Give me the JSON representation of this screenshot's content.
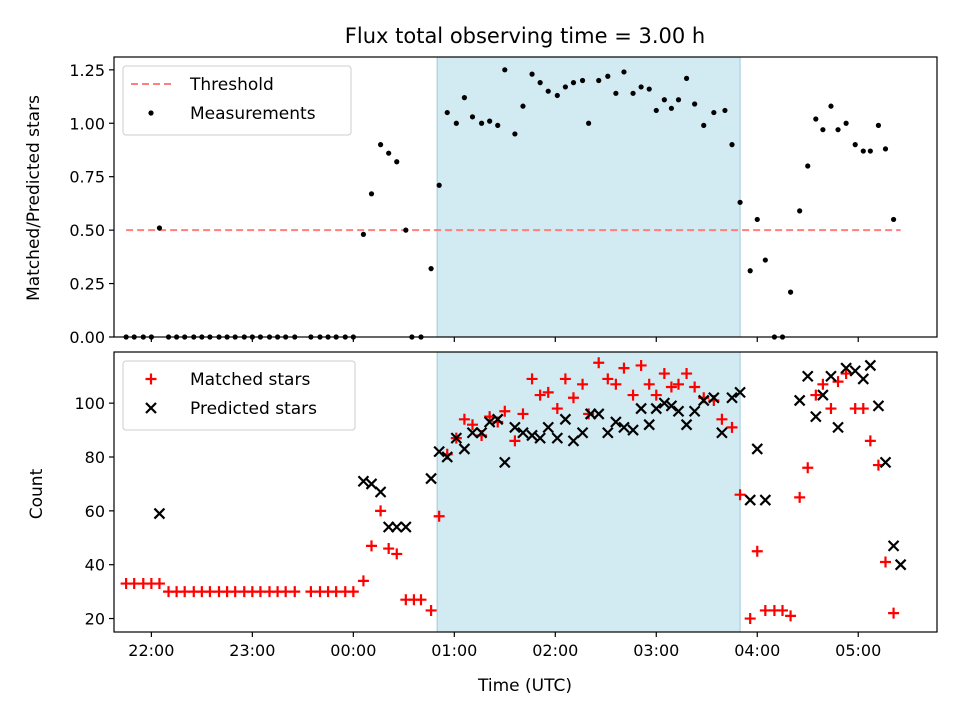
{
  "figure": {
    "title": "Flux total observing time = 3.00 h",
    "xlabel": "Time (UTC)",
    "xticks": [
      {
        "t": 22.0,
        "label": "22:00"
      },
      {
        "t": 23.0,
        "label": "23:00"
      },
      {
        "t": 24.0,
        "label": "00:00"
      },
      {
        "t": 25.0,
        "label": "01:00"
      },
      {
        "t": 26.0,
        "label": "02:00"
      },
      {
        "t": 27.0,
        "label": "03:00"
      },
      {
        "t": 28.0,
        "label": "04:00"
      },
      {
        "t": 29.0,
        "label": "05:00"
      }
    ],
    "xlim": [
      21.63,
      29.78
    ],
    "highlight_span": [
      24.83,
      27.83
    ],
    "colors": {
      "highlight": "#add8e6",
      "threshold": "#ff7f7f",
      "measurements": "#000000",
      "matched": "#ff0000",
      "predicted": "#000000"
    }
  },
  "chart_data": [
    {
      "type": "scatter",
      "ylabel": "Matched/Predicted stars",
      "ylim": [
        0,
        1.31
      ],
      "yticks": [
        "0.00",
        "0.25",
        "0.50",
        "0.75",
        "1.00",
        "1.25"
      ],
      "legend_position": "top-left",
      "threshold": {
        "name": "Threshold",
        "value": 0.5,
        "x_range": [
          21.75,
          29.42
        ]
      },
      "series": [
        {
          "name": "Measurements",
          "marker": "dot",
          "points": [
            [
              21.75,
              0
            ],
            [
              21.83,
              0
            ],
            [
              21.92,
              0
            ],
            [
              22.0,
              0
            ],
            [
              22.08,
              0.51
            ],
            [
              22.17,
              0
            ],
            [
              22.25,
              0
            ],
            [
              22.33,
              0
            ],
            [
              22.42,
              0
            ],
            [
              22.5,
              0
            ],
            [
              22.58,
              0
            ],
            [
              22.67,
              0
            ],
            [
              22.75,
              0
            ],
            [
              22.83,
              0
            ],
            [
              22.92,
              0
            ],
            [
              23.0,
              0
            ],
            [
              23.08,
              0
            ],
            [
              23.17,
              0
            ],
            [
              23.25,
              0
            ],
            [
              23.33,
              0
            ],
            [
              23.42,
              0
            ],
            [
              23.58,
              0
            ],
            [
              23.67,
              0
            ],
            [
              23.75,
              0
            ],
            [
              23.83,
              0
            ],
            [
              23.92,
              0
            ],
            [
              24.0,
              0
            ],
            [
              24.1,
              0.48
            ],
            [
              24.18,
              0.67
            ],
            [
              24.27,
              0.9
            ],
            [
              24.35,
              0.86
            ],
            [
              24.43,
              0.82
            ],
            [
              24.52,
              0.5
            ],
            [
              24.58,
              0
            ],
            [
              24.67,
              0
            ],
            [
              24.77,
              0.32
            ],
            [
              24.85,
              0.71
            ],
            [
              24.93,
              1.05
            ],
            [
              25.02,
              1.0
            ],
            [
              25.1,
              1.12
            ],
            [
              25.18,
              1.03
            ],
            [
              25.27,
              1.0
            ],
            [
              25.35,
              1.01
            ],
            [
              25.43,
              0.99
            ],
            [
              25.5,
              1.25
            ],
            [
              25.6,
              0.95
            ],
            [
              25.68,
              1.08
            ],
            [
              25.77,
              1.23
            ],
            [
              25.85,
              1.19
            ],
            [
              25.93,
              1.15
            ],
            [
              26.02,
              1.13
            ],
            [
              26.1,
              1.17
            ],
            [
              26.18,
              1.19
            ],
            [
              26.27,
              1.2
            ],
            [
              26.33,
              1.0
            ],
            [
              26.43,
              1.2
            ],
            [
              26.52,
              1.22
            ],
            [
              26.6,
              1.14
            ],
            [
              26.68,
              1.24
            ],
            [
              26.77,
              1.14
            ],
            [
              26.85,
              1.17
            ],
            [
              26.93,
              1.16
            ],
            [
              27.0,
              1.06
            ],
            [
              27.08,
              1.11
            ],
            [
              27.15,
              1.07
            ],
            [
              27.22,
              1.11
            ],
            [
              27.3,
              1.21
            ],
            [
              27.38,
              1.09
            ],
            [
              27.47,
              0.99
            ],
            [
              27.57,
              1.05
            ],
            [
              27.68,
              1.06
            ],
            [
              27.75,
              0.9
            ],
            [
              27.83,
              0.63
            ],
            [
              27.93,
              0.31
            ],
            [
              28.0,
              0.55
            ],
            [
              28.08,
              0.36
            ],
            [
              28.17,
              0
            ],
            [
              28.25,
              0
            ],
            [
              28.33,
              0.21
            ],
            [
              28.42,
              0.59
            ],
            [
              28.5,
              0.8
            ],
            [
              28.58,
              1.02
            ],
            [
              28.65,
              0.97
            ],
            [
              28.73,
              1.08
            ],
            [
              28.8,
              0.97
            ],
            [
              28.88,
              1.0
            ],
            [
              28.97,
              0.9
            ],
            [
              29.05,
              0.87
            ],
            [
              29.12,
              0.87
            ],
            [
              29.2,
              0.99
            ],
            [
              29.27,
              0.88
            ],
            [
              29.35,
              0.55
            ]
          ]
        }
      ]
    },
    {
      "type": "scatter",
      "ylabel": "Count",
      "ylim": [
        15,
        119
      ],
      "yticks": [
        "20",
        "40",
        "60",
        "80",
        "100"
      ],
      "legend_position": "top-left",
      "series": [
        {
          "name": "Matched stars",
          "marker": "plus",
          "points": [
            [
              21.75,
              33
            ],
            [
              21.83,
              33
            ],
            [
              21.92,
              33
            ],
            [
              22.0,
              33
            ],
            [
              22.08,
              33
            ],
            [
              22.17,
              30
            ],
            [
              22.25,
              30
            ],
            [
              22.33,
              30
            ],
            [
              22.42,
              30
            ],
            [
              22.5,
              30
            ],
            [
              22.58,
              30
            ],
            [
              22.67,
              30
            ],
            [
              22.75,
              30
            ],
            [
              22.83,
              30
            ],
            [
              22.92,
              30
            ],
            [
              23.0,
              30
            ],
            [
              23.08,
              30
            ],
            [
              23.17,
              30
            ],
            [
              23.25,
              30
            ],
            [
              23.33,
              30
            ],
            [
              23.42,
              30
            ],
            [
              23.58,
              30
            ],
            [
              23.67,
              30
            ],
            [
              23.75,
              30
            ],
            [
              23.83,
              30
            ],
            [
              23.92,
              30
            ],
            [
              24.0,
              30
            ],
            [
              24.1,
              34
            ],
            [
              24.18,
              47
            ],
            [
              24.27,
              60
            ],
            [
              24.35,
              46
            ],
            [
              24.43,
              44
            ],
            [
              24.52,
              27
            ],
            [
              24.6,
              27
            ],
            [
              24.67,
              27
            ],
            [
              24.77,
              23
            ],
            [
              24.85,
              58
            ],
            [
              24.93,
              81
            ],
            [
              25.02,
              87
            ],
            [
              25.1,
              94
            ],
            [
              25.18,
              92
            ],
            [
              25.27,
              88
            ],
            [
              25.35,
              95
            ],
            [
              25.43,
              93
            ],
            [
              25.5,
              97
            ],
            [
              25.6,
              86
            ],
            [
              25.68,
              96
            ],
            [
              25.77,
              109
            ],
            [
              25.85,
              103
            ],
            [
              25.93,
              104
            ],
            [
              26.02,
              98
            ],
            [
              26.1,
              109
            ],
            [
              26.18,
              102
            ],
            [
              26.27,
              107
            ],
            [
              26.33,
              96
            ],
            [
              26.43,
              115
            ],
            [
              26.52,
              109
            ],
            [
              26.6,
              107
            ],
            [
              26.68,
              113
            ],
            [
              26.77,
              103
            ],
            [
              26.85,
              114
            ],
            [
              26.93,
              107
            ],
            [
              27.0,
              103
            ],
            [
              27.08,
              111
            ],
            [
              27.15,
              106
            ],
            [
              27.22,
              107
            ],
            [
              27.3,
              111
            ],
            [
              27.38,
              106
            ],
            [
              27.47,
              102
            ],
            [
              27.57,
              101
            ],
            [
              27.65,
              94
            ],
            [
              27.75,
              91
            ],
            [
              27.83,
              66
            ],
            [
              27.93,
              20
            ],
            [
              28.0,
              45
            ],
            [
              28.08,
              23
            ],
            [
              28.17,
              23
            ],
            [
              28.25,
              23
            ],
            [
              28.33,
              21
            ],
            [
              28.42,
              65
            ],
            [
              28.5,
              76
            ],
            [
              28.58,
              103
            ],
            [
              28.65,
              107
            ],
            [
              28.73,
              98
            ],
            [
              28.8,
              108
            ],
            [
              28.88,
              111
            ],
            [
              28.97,
              98
            ],
            [
              29.05,
              98
            ],
            [
              29.12,
              86
            ],
            [
              29.2,
              77
            ],
            [
              29.27,
              41
            ],
            [
              29.35,
              22
            ]
          ]
        },
        {
          "name": "Predicted stars",
          "marker": "x",
          "points": [
            [
              22.08,
              59
            ],
            [
              24.1,
              71
            ],
            [
              24.18,
              70
            ],
            [
              24.27,
              67
            ],
            [
              24.35,
              54
            ],
            [
              24.43,
              54
            ],
            [
              24.52,
              54
            ],
            [
              24.77,
              72
            ],
            [
              24.85,
              82
            ],
            [
              24.93,
              80
            ],
            [
              25.02,
              87
            ],
            [
              25.1,
              83
            ],
            [
              25.18,
              89
            ],
            [
              25.27,
              89
            ],
            [
              25.35,
              93
            ],
            [
              25.43,
              94
            ],
            [
              25.5,
              78
            ],
            [
              25.6,
              91
            ],
            [
              25.68,
              89
            ],
            [
              25.77,
              88
            ],
            [
              25.85,
              87
            ],
            [
              25.93,
              91
            ],
            [
              26.02,
              87
            ],
            [
              26.1,
              94
            ],
            [
              26.18,
              86
            ],
            [
              26.27,
              89
            ],
            [
              26.35,
              96
            ],
            [
              26.43,
              96
            ],
            [
              26.52,
              89
            ],
            [
              26.6,
              93
            ],
            [
              26.68,
              91
            ],
            [
              26.77,
              90
            ],
            [
              26.85,
              98
            ],
            [
              26.93,
              92
            ],
            [
              27.0,
              98
            ],
            [
              27.08,
              100
            ],
            [
              27.15,
              99
            ],
            [
              27.22,
              97
            ],
            [
              27.3,
              92
            ],
            [
              27.38,
              97
            ],
            [
              27.47,
              101
            ],
            [
              27.57,
              102
            ],
            [
              27.65,
              89
            ],
            [
              27.75,
              102
            ],
            [
              27.83,
              104
            ],
            [
              27.93,
              64
            ],
            [
              28.0,
              83
            ],
            [
              28.08,
              64
            ],
            [
              28.42,
              101
            ],
            [
              28.5,
              110
            ],
            [
              28.58,
              95
            ],
            [
              28.65,
              103
            ],
            [
              28.73,
              110
            ],
            [
              28.8,
              91
            ],
            [
              28.88,
              113
            ],
            [
              28.97,
              112
            ],
            [
              29.05,
              109
            ],
            [
              29.12,
              114
            ],
            [
              29.2,
              99
            ],
            [
              29.27,
              78
            ],
            [
              29.35,
              47
            ],
            [
              29.42,
              40
            ]
          ]
        }
      ]
    }
  ]
}
